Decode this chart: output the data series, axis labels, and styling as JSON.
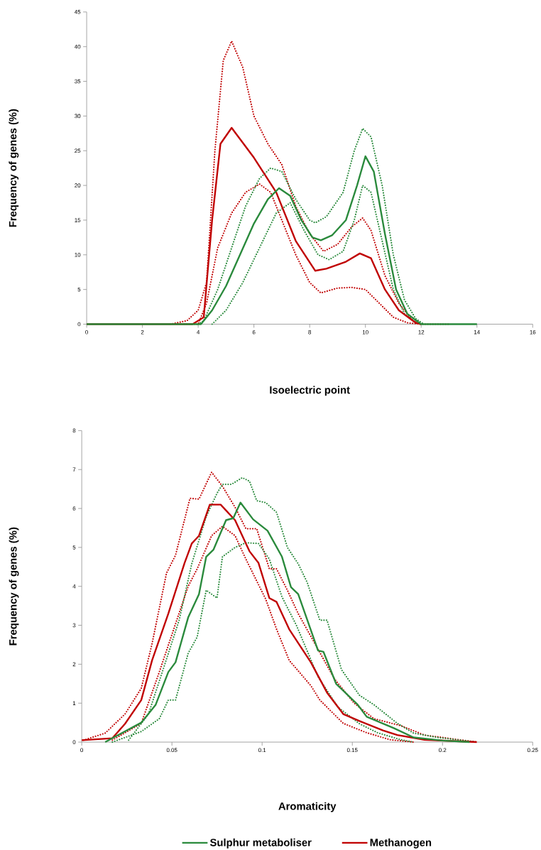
{
  "chart_data": [
    {
      "type": "line",
      "xlabel": "Isoelectric point",
      "ylabel": "Frequency of genes (%)",
      "xlim": [
        0,
        16
      ],
      "ylim": [
        0,
        45
      ],
      "xticks": [
        0,
        2,
        4,
        6,
        8,
        10,
        12,
        14,
        16
      ],
      "yticks": [
        0,
        5,
        10,
        15,
        20,
        25,
        30,
        35,
        40,
        45
      ],
      "series": [
        {
          "color": "#c00000",
          "line_style": "dotted",
          "x": [
            3,
            3.6,
            4,
            4.3,
            4.6,
            4.9,
            5.2,
            5.6,
            6,
            6.5,
            7,
            7.5,
            8,
            8.5,
            9,
            9.5,
            9.9,
            10.2,
            10.7,
            11.2,
            11.7,
            12,
            13
          ],
          "values": [
            0,
            0.5,
            2,
            6,
            25,
            38,
            40.8,
            37,
            30,
            26,
            23,
            17,
            13,
            10.5,
            11.5,
            14,
            15.3,
            13.5,
            7,
            3,
            0.5,
            0,
            0
          ]
        },
        {
          "color": "#c00000",
          "line_style": "dotted",
          "x": [
            3.5,
            4,
            4.3,
            4.7,
            5.2,
            5.7,
            6.2,
            6.6,
            7,
            7.5,
            8,
            8.4,
            9,
            9.5,
            10,
            10.5,
            11,
            11.5,
            12
          ],
          "values": [
            0,
            0,
            3,
            11,
            16,
            19,
            20.2,
            19,
            15,
            10,
            6,
            4.5,
            5.2,
            5.3,
            5,
            3,
            1,
            0.2,
            0
          ]
        },
        {
          "color": "#2a8a3c",
          "line_style": "dotted",
          "x": [
            4,
            4.2,
            4.7,
            5.2,
            5.7,
            6.2,
            6.6,
            7,
            7.5,
            8,
            8.2,
            8.6,
            9.2,
            9.6,
            9.9,
            10.2,
            10.6,
            11,
            11.4,
            11.8,
            12.1
          ],
          "values": [
            0,
            0.5,
            5,
            11,
            17,
            21,
            22.5,
            22,
            18,
            15,
            14.6,
            15.5,
            19,
            25,
            28.2,
            27,
            20,
            10,
            3.5,
            0.8,
            0
          ]
        },
        {
          "color": "#2a8a3c",
          "line_style": "dotted",
          "x": [
            4.5,
            5,
            5.6,
            6.2,
            6.8,
            7.3,
            7.8,
            8.3,
            8.7,
            9.2,
            9.6,
            9.9,
            10.2,
            10.6,
            11,
            11.4,
            11.9
          ],
          "values": [
            0,
            2,
            6,
            11,
            16,
            17.5,
            13.5,
            10,
            9.3,
            10.5,
            15,
            20,
            19,
            12,
            5,
            1.5,
            0
          ]
        },
        {
          "color": "#c00000",
          "line_style": "solid",
          "x": [
            0,
            3.8,
            4.2,
            4.5,
            4.8,
            5.2,
            6,
            6.8,
            7.5,
            8.2,
            8.6,
            9.3,
            9.8,
            10.2,
            10.7,
            11.2,
            11.8,
            12
          ],
          "values": [
            0,
            0,
            1,
            15,
            26,
            28.3,
            24,
            19,
            12,
            7.7,
            8,
            9,
            10.2,
            9.5,
            5,
            2,
            0.2,
            0
          ]
        },
        {
          "color": "#2a8a3c",
          "line_style": "solid",
          "x": [
            0,
            4.1,
            4.5,
            5,
            5.5,
            6,
            6.5,
            6.9,
            7.3,
            7.7,
            8.1,
            8.4,
            8.8,
            9.3,
            9.7,
            10,
            10.3,
            10.7,
            11.1,
            11.5,
            12,
            14
          ],
          "values": [
            0,
            0,
            2,
            5.5,
            10,
            14.5,
            18,
            19.6,
            18.5,
            15,
            12.5,
            12.1,
            12.8,
            15,
            20,
            24.2,
            22,
            13,
            5,
            1.5,
            0,
            0
          ]
        }
      ]
    },
    {
      "type": "line",
      "xlabel": "Aromaticity",
      "ylabel": "Frequency of genes (%)",
      "xlim": [
        0,
        0.25
      ],
      "ylim": [
        0,
        8
      ],
      "xticks": [
        0,
        0.05,
        0.1,
        0.15,
        0.2,
        0.25
      ],
      "yticks": [
        0,
        1,
        2,
        3,
        4,
        5,
        6,
        7,
        8
      ],
      "legend": "bottom",
      "series": [
        {
          "color": "#c00000",
          "line_style": "dotted",
          "x": [
            0.001,
            0.013,
            0.024,
            0.033,
            0.039,
            0.047,
            0.052,
            0.06,
            0.065,
            0.072,
            0.078,
            0.085,
            0.091,
            0.097,
            0.104,
            0.108,
            0.114,
            0.12,
            0.132,
            0.14,
            0.151,
            0.162,
            0.177,
            0.19,
            0.219
          ],
          "values": [
            0.05,
            0.23,
            0.72,
            1.38,
            2.53,
            4.34,
            4.8,
            6.26,
            6.24,
            6.93,
            6.57,
            6.03,
            5.48,
            5.48,
            4.45,
            4.45,
            3.9,
            3.3,
            2.3,
            1.63,
            1,
            0.6,
            0.42,
            0.18,
            0
          ]
        },
        {
          "color": "#c00000",
          "line_style": "dotted",
          "x": [
            0.017,
            0.033,
            0.043,
            0.051,
            0.059,
            0.064,
            0.072,
            0.078,
            0.085,
            0.091,
            0.102,
            0.108,
            0.115,
            0.127,
            0.132,
            0.145,
            0.158,
            0.171,
            0.184
          ],
          "values": [
            0.05,
            0.48,
            1.8,
            2.9,
            4,
            4.45,
            5.3,
            5.54,
            5.3,
            4.7,
            3.67,
            2.9,
            2.1,
            1.45,
            1.08,
            0.48,
            0.24,
            0.06,
            0
          ]
        },
        {
          "color": "#2a8a3c",
          "line_style": "dotted",
          "x": [
            0.026,
            0.037,
            0.046,
            0.054,
            0.061,
            0.069,
            0.075,
            0.078,
            0.083,
            0.089,
            0.093,
            0.097,
            0.102,
            0.108,
            0.114,
            0.12,
            0.125,
            0.132,
            0.136,
            0.144,
            0.154,
            0.162,
            0.175,
            0.184,
            0.197,
            0.21,
            0.219
          ],
          "values": [
            0.05,
            0.72,
            1.99,
            3.13,
            4.58,
            5.79,
            6.39,
            6.62,
            6.62,
            6.79,
            6.7,
            6.2,
            6.15,
            5.9,
            5,
            4.58,
            4.1,
            3.13,
            3.13,
            1.86,
            1.2,
            0.96,
            0.48,
            0.23,
            0.12,
            0.05,
            0
          ]
        },
        {
          "color": "#2a8a3c",
          "line_style": "dotted",
          "x": [
            0.017,
            0.033,
            0.043,
            0.048,
            0.052,
            0.059,
            0.064,
            0.069,
            0.075,
            0.078,
            0.085,
            0.091,
            0.098,
            0.104,
            0.111,
            0.119,
            0.131,
            0.142,
            0.154,
            0.164,
            0.177,
            0.184
          ],
          "values": [
            0,
            0.27,
            0.6,
            1.08,
            1.08,
            2.28,
            2.7,
            3.9,
            3.7,
            4.76,
            5,
            5.12,
            5.1,
            4.7,
            3.73,
            3,
            1.68,
            0.9,
            0.47,
            0.24,
            0.06,
            0
          ]
        },
        {
          "name": "Methanogen",
          "color": "#c00000",
          "line_style": "solid",
          "x": [
            0,
            0.017,
            0.024,
            0.033,
            0.039,
            0.048,
            0.057,
            0.061,
            0.065,
            0.071,
            0.077,
            0.085,
            0.093,
            0.098,
            0.104,
            0.108,
            0.115,
            0.127,
            0.136,
            0.145,
            0.154,
            0.167,
            0.175,
            0.19,
            0.219
          ],
          "values": [
            0.05,
            0.1,
            0.47,
            1.08,
            2.1,
            3.3,
            4.6,
            5.1,
            5.3,
            6.1,
            6.1,
            5.7,
            4.9,
            4.6,
            3.7,
            3.6,
            2.9,
            2.05,
            1.27,
            0.72,
            0.54,
            0.3,
            0.18,
            0.06,
            0
          ]
        },
        {
          "name": "Sulphur metaboliser",
          "color": "#2a8a3c",
          "line_style": "solid",
          "x": [
            0.013,
            0.033,
            0.041,
            0.048,
            0.052,
            0.059,
            0.065,
            0.069,
            0.073,
            0.08,
            0.084,
            0.088,
            0.095,
            0.103,
            0.111,
            0.116,
            0.12,
            0.131,
            0.134,
            0.141,
            0.153,
            0.158,
            0.173,
            0.184,
            0.2,
            0.215
          ],
          "values": [
            0,
            0.5,
            0.96,
            1.8,
            2.05,
            3.2,
            3.8,
            4.76,
            4.94,
            5.7,
            5.75,
            6.15,
            5.72,
            5.43,
            4.76,
            3.98,
            3.8,
            2.35,
            2.32,
            1.5,
            0.96,
            0.65,
            0.36,
            0.12,
            0.04,
            0
          ]
        }
      ]
    }
  ]
}
